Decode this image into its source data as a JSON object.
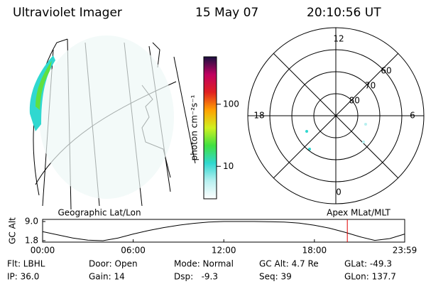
{
  "header": {
    "instrument": "Ultraviolet Imager",
    "date": "15 May 07",
    "time": "20:10:56 UT"
  },
  "left_image": {
    "title": "Geographic Lat/Lon"
  },
  "colorbar": {
    "label": "photon cm⁻²s⁻¹",
    "ylim": [
      3,
      580
    ],
    "yticks": [
      10,
      100
    ],
    "log": true,
    "colors": [
      "#ffffff",
      "#b8f0f0",
      "#30d8d0",
      "#40e040",
      "#d0f020",
      "#ffa000",
      "#e02020",
      "#c00060",
      "#1a1040"
    ]
  },
  "polar": {
    "title": "Apex MLat/MLT",
    "lat_rings": [
      60,
      70,
      80
    ],
    "mlt": [
      12,
      6,
      0,
      18
    ]
  },
  "chart_data": {
    "type": "line",
    "ylabel": "GC Alt",
    "x": [
      0,
      1,
      2,
      3,
      4,
      5,
      6,
      7,
      8,
      9,
      10,
      11,
      12,
      13,
      14,
      15,
      16,
      17,
      18,
      19,
      20,
      21,
      22,
      23,
      23.98
    ],
    "series": [
      {
        "color": "#000000",
        "values": [
          5.2,
          4.0,
          2.8,
          2.0,
          1.8,
          2.8,
          4.3,
          5.6,
          6.7,
          7.6,
          8.3,
          8.8,
          9.0,
          9.0,
          9.0,
          8.9,
          8.8,
          8.4,
          7.6,
          6.5,
          5.0,
          3.3,
          1.9,
          2.6,
          4.3
        ]
      }
    ],
    "xlim": [
      0,
      23.98
    ],
    "xticks": [
      {
        "value": 0,
        "label": "00:00"
      },
      {
        "value": 6,
        "label": "06:00"
      },
      {
        "value": 12,
        "label": "12:00"
      },
      {
        "value": 18,
        "label": "18:00"
      },
      {
        "value": 23.98,
        "label": "23:59"
      }
    ],
    "ylim": [
      1.8,
      9.0
    ],
    "yticks": [
      {
        "value": 9.0,
        "label": "9.0"
      },
      1.8
    ],
    "time_marker": 20.18,
    "time_marker_color": "#e00000"
  },
  "footer": {
    "rows": [
      [
        "Flt: LBHL",
        "Door: Open",
        "Mode: Normal",
        "GC Alt: 4.7 Re",
        "GLat: -49.3"
      ],
      [
        "IP: 36.0",
        "Gain: 14",
        "Dsp:   -9.3",
        "Seq: 39",
        "GLon: 137.7"
      ]
    ]
  }
}
